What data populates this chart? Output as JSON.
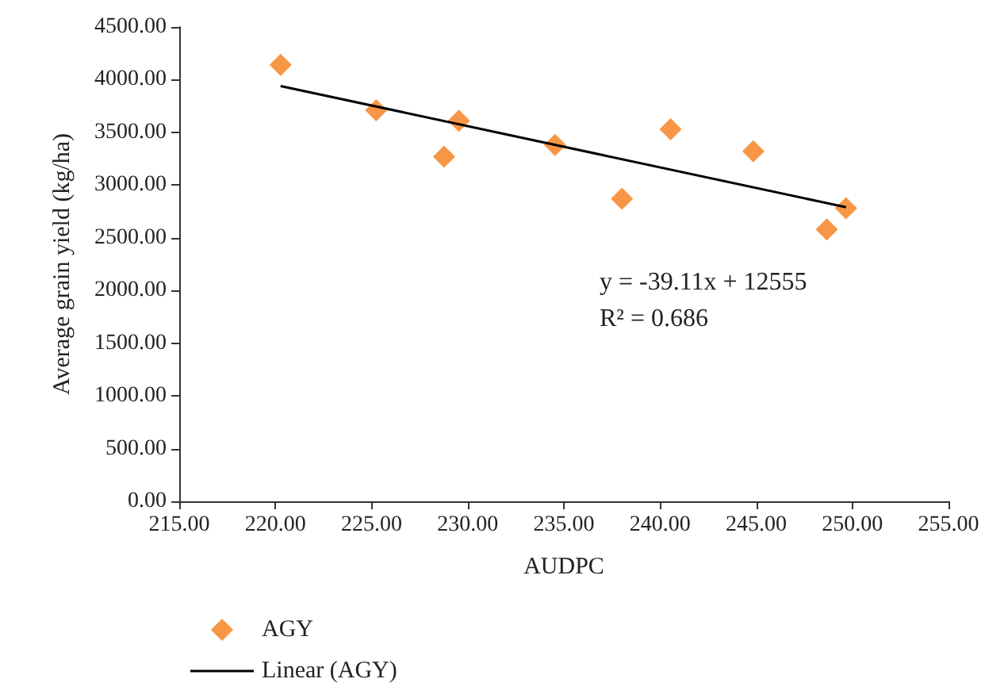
{
  "chart_data": {
    "type": "scatter",
    "xlabel": "AUDPC",
    "ylabel": "Average grain yield (kg/ha)",
    "series": [
      {
        "name": "AGY",
        "color": "#f79646",
        "marker": "diamond",
        "x": [
          220.27,
          225.24,
          228.77,
          229.54,
          234.54,
          238.02,
          240.55,
          244.85,
          248.67,
          249.67
        ],
        "values": [
          4140,
          3710,
          3270,
          3610,
          3380,
          2870,
          3530,
          3320,
          2580,
          2780
        ]
      },
      {
        "name": "Linear (AGY)",
        "type": "line",
        "color": "#000000",
        "marker": "none",
        "x": [
          220.27,
          249.67
        ],
        "values": [
          3940,
          2790
        ]
      }
    ],
    "xlim": [
      215,
      255
    ],
    "xticks": [
      {
        "value": 215,
        "label": "215.00"
      },
      {
        "value": 220,
        "label": "220.00"
      },
      {
        "value": 225,
        "label": "225.00"
      },
      {
        "value": 230,
        "label": "230.00"
      },
      {
        "value": 235,
        "label": "235.00"
      },
      {
        "value": 240,
        "label": "240.00"
      },
      {
        "value": 245,
        "label": "245.00"
      },
      {
        "value": 250,
        "label": "250.00"
      },
      {
        "value": 255,
        "label": "255.00"
      }
    ],
    "ylim": [
      0,
      4500
    ],
    "yticks": [
      {
        "value": 0,
        "label": "0.00"
      },
      {
        "value": 500,
        "label": "500.00"
      },
      {
        "value": 1000,
        "label": "1000.00"
      },
      {
        "value": 1500,
        "label": "1500.00"
      },
      {
        "value": 2000,
        "label": "2000.00"
      },
      {
        "value": 2500,
        "label": "2500.00"
      },
      {
        "value": 3000,
        "label": "3000.00"
      },
      {
        "value": 3500,
        "label": "3500.00"
      },
      {
        "value": 4000,
        "label": "4000.00"
      },
      {
        "value": 4500,
        "label": "4500.00"
      }
    ],
    "annotations": [
      "y = -39.11x + 12555",
      "R² = 0.686"
    ],
    "grid": false,
    "legend": "bottom left"
  }
}
